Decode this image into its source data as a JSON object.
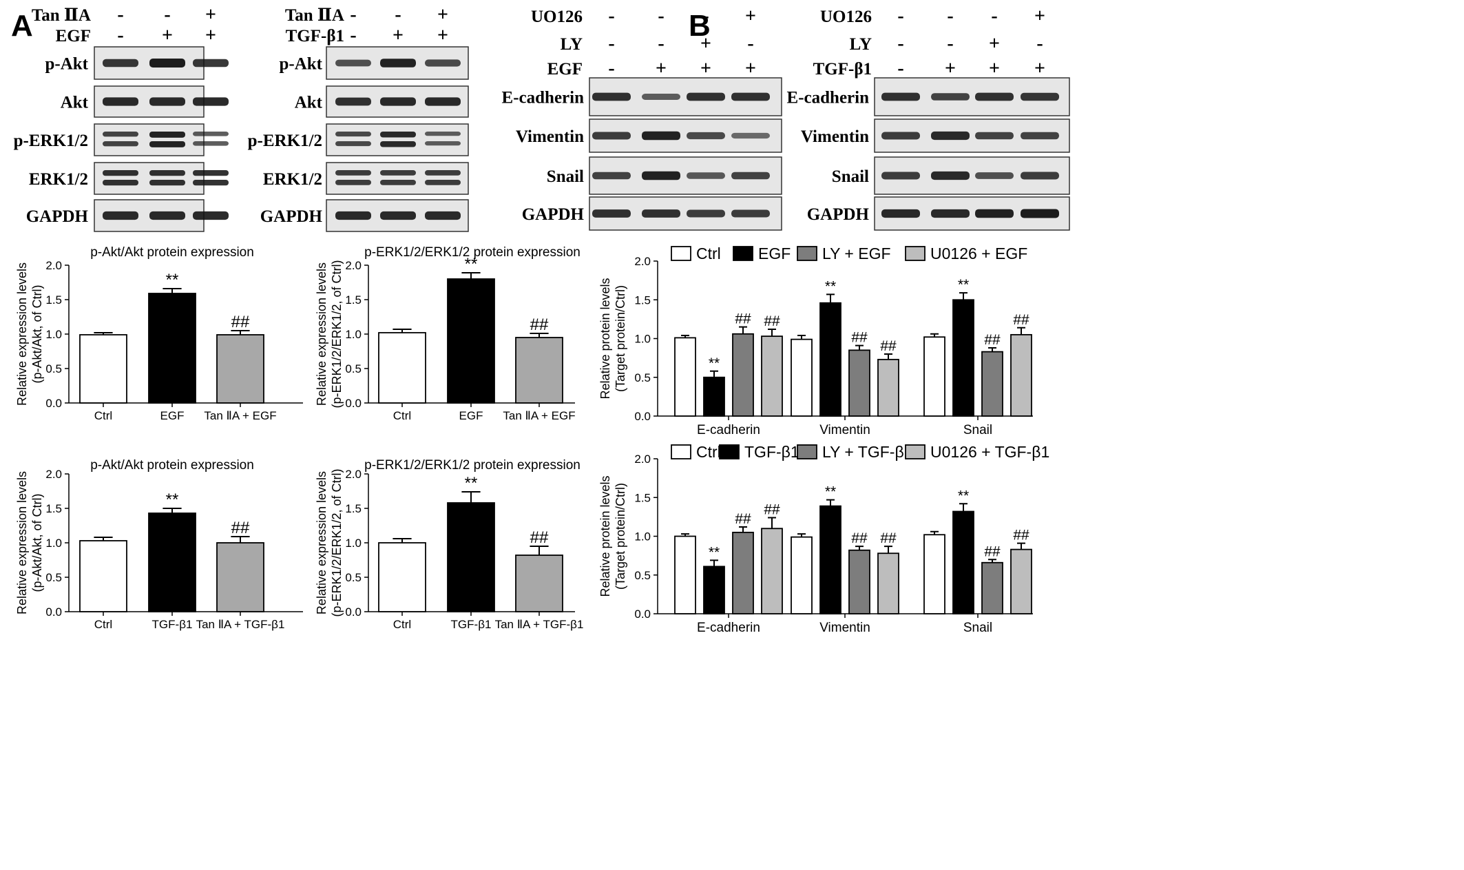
{
  "panels": {
    "A": "A",
    "B": "B"
  },
  "blots": [
    {
      "id": "blot-a1",
      "treatments": [
        {
          "label": "Tan ⅡA",
          "signs": [
            "-",
            "-",
            "+"
          ]
        },
        {
          "label": "EGF",
          "signs": [
            "-",
            "+",
            "+"
          ]
        }
      ],
      "rows": [
        {
          "label": "p-Akt",
          "intensity": [
            0.8,
            1.0,
            0.8
          ]
        },
        {
          "label": "Akt",
          "intensity": [
            0.9,
            0.9,
            0.9
          ]
        },
        {
          "label": "p-ERK1/2",
          "intensity": [
            0.7,
            0.95,
            0.55
          ]
        },
        {
          "label": "ERK1/2",
          "intensity": [
            0.85,
            0.85,
            0.85
          ]
        },
        {
          "label": "GAPDH",
          "intensity": [
            0.9,
            0.9,
            0.9
          ]
        }
      ]
    },
    {
      "id": "blot-a2",
      "treatments": [
        {
          "label": "Tan ⅡA",
          "signs": [
            "-",
            "-",
            "+"
          ]
        },
        {
          "label": "TGF-β1",
          "signs": [
            "-",
            "+",
            "+"
          ]
        }
      ],
      "rows": [
        {
          "label": "p-Akt",
          "intensity": [
            0.6,
            0.95,
            0.65
          ]
        },
        {
          "label": "Akt",
          "intensity": [
            0.85,
            0.9,
            0.9
          ]
        },
        {
          "label": "p-ERK1/2",
          "intensity": [
            0.65,
            0.9,
            0.5
          ]
        },
        {
          "label": "ERK1/2",
          "intensity": [
            0.75,
            0.75,
            0.75
          ]
        },
        {
          "label": "GAPDH",
          "intensity": [
            0.9,
            0.9,
            0.9
          ]
        }
      ]
    },
    {
      "id": "blot-b1",
      "treatments": [
        {
          "label": "UO126",
          "signs": [
            "-",
            "-",
            "-",
            "+"
          ]
        },
        {
          "label": "LY",
          "signs": [
            "-",
            "-",
            "+",
            "-"
          ]
        },
        {
          "label": "EGF",
          "signs": [
            "-",
            "+",
            "+",
            "+"
          ]
        }
      ],
      "rows": [
        {
          "label": "E-cadherin",
          "intensity": [
            0.85,
            0.5,
            0.85,
            0.85
          ]
        },
        {
          "label": "Vimentin",
          "intensity": [
            0.75,
            0.95,
            0.65,
            0.4
          ]
        },
        {
          "label": "Snail",
          "intensity": [
            0.7,
            0.95,
            0.55,
            0.7
          ]
        },
        {
          "label": "GAPDH",
          "intensity": [
            0.85,
            0.85,
            0.75,
            0.75
          ]
        }
      ]
    },
    {
      "id": "blot-b2",
      "treatments": [
        {
          "label": "UO126",
          "signs": [
            "-",
            "-",
            "-",
            "+"
          ]
        },
        {
          "label": "LY",
          "signs": [
            "-",
            "-",
            "+",
            "-"
          ]
        },
        {
          "label": "TGF-β1",
          "signs": [
            "-",
            "+",
            "+",
            "+"
          ]
        }
      ],
      "rows": [
        {
          "label": "E-cadherin",
          "intensity": [
            0.85,
            0.7,
            0.85,
            0.8
          ]
        },
        {
          "label": "Vimentin",
          "intensity": [
            0.75,
            0.9,
            0.7,
            0.7
          ]
        },
        {
          "label": "Snail",
          "intensity": [
            0.75,
            0.9,
            0.6,
            0.75
          ]
        },
        {
          "label": "GAPDH",
          "intensity": [
            0.9,
            0.9,
            0.95,
            1.0
          ]
        }
      ]
    }
  ],
  "colors": {
    "ctrl": "#ffffff",
    "treat": "#000000",
    "inhibA": "#a8a8a8",
    "ly": "#7d7d7d",
    "u0126": "#bdbdbd",
    "axis": "#000000",
    "blot_bg": "#e6e6e6",
    "band": "#111111"
  },
  "chart_data": [
    {
      "id": "chart-a1",
      "type": "bar",
      "title": "p-Akt/Akt protein expression",
      "ylabel": [
        "Relative expression levels",
        "(p-Akt/Akt, of Ctrl)"
      ],
      "ylim": [
        0,
        2.0
      ],
      "yticks": [
        "0.0",
        "0.5",
        "1.0",
        "1.5",
        "2.0"
      ],
      "categories": [
        "Ctrl",
        "EGF",
        "Tan ⅡA + EGF"
      ],
      "values": [
        0.99,
        1.59,
        0.99
      ],
      "errors": [
        0.03,
        0.07,
        0.06
      ],
      "annotations": [
        "",
        "**",
        "##"
      ],
      "fills": [
        "ctrl",
        "treat",
        "inhibA"
      ]
    },
    {
      "id": "chart-a2",
      "type": "bar",
      "title": "p-ERK1/2/ERK1/2 protein expression",
      "ylabel": [
        "Relative expression levels",
        "(p-ERK1/2/ERK1/2, of Ctrl)"
      ],
      "ylim": [
        0,
        2.0
      ],
      "yticks": [
        "0.0",
        "0.5",
        "1.0",
        "1.5",
        "2.0"
      ],
      "categories": [
        "Ctrl",
        "EGF",
        "Tan ⅡA + EGF"
      ],
      "values": [
        1.02,
        1.8,
        0.95
      ],
      "errors": [
        0.05,
        0.09,
        0.06
      ],
      "annotations": [
        "",
        "**",
        "##"
      ],
      "fills": [
        "ctrl",
        "treat",
        "inhibA"
      ]
    },
    {
      "id": "chart-a3",
      "type": "bar",
      "title": "p-Akt/Akt protein expression",
      "ylabel": [
        "Relative expression levels",
        "(p-Akt/Akt, of Ctrl)"
      ],
      "ylim": [
        0,
        2.0
      ],
      "yticks": [
        "0.0",
        "0.5",
        "1.0",
        "1.5",
        "2.0"
      ],
      "categories": [
        "Ctrl",
        "TGF-β1",
        "Tan ⅡA + TGF-β1"
      ],
      "values": [
        1.03,
        1.43,
        1.0
      ],
      "errors": [
        0.05,
        0.07,
        0.09
      ],
      "annotations": [
        "",
        "**",
        "##"
      ],
      "fills": [
        "ctrl",
        "treat",
        "inhibA"
      ]
    },
    {
      "id": "chart-a4",
      "type": "bar",
      "title": "p-ERK1/2/ERK1/2 protein expression",
      "ylabel": [
        "Relative expression levels",
        "(p-ERK1/2/ERK1/2, of Ctrl)"
      ],
      "ylim": [
        0,
        2.0
      ],
      "yticks": [
        "0.0",
        "0.5",
        "1.0",
        "1.5",
        "2.0"
      ],
      "categories": [
        "Ctrl",
        "TGF-β1",
        "Tan ⅡA + TGF-β1"
      ],
      "values": [
        1.0,
        1.58,
        0.82
      ],
      "errors": [
        0.06,
        0.16,
        0.13
      ],
      "annotations": [
        "",
        "**",
        "##"
      ],
      "fills": [
        "ctrl",
        "treat",
        "inhibA"
      ]
    },
    {
      "id": "chart-b1",
      "type": "bar",
      "title": "",
      "ylabel": [
        "Relative protein levels",
        "(Target protein/Ctrl)"
      ],
      "ylim": [
        0,
        2.0
      ],
      "yticks": [
        "0.0",
        "0.5",
        "1.0",
        "1.5",
        "2.0"
      ],
      "categories": [
        "E-cadherin",
        "Vimentin",
        "Snail"
      ],
      "legend": [
        "Ctrl",
        "EGF",
        "LY + EGF",
        "U0126 + EGF"
      ],
      "legend_position": "top",
      "series": [
        {
          "name": "Ctrl",
          "fill": "ctrl",
          "values": [
            1.01,
            0.99,
            1.02
          ],
          "errors": [
            0.03,
            0.05,
            0.04
          ],
          "annotations": [
            "",
            "",
            ""
          ]
        },
        {
          "name": "EGF",
          "fill": "treat",
          "values": [
            0.5,
            1.46,
            1.5
          ],
          "errors": [
            0.08,
            0.11,
            0.09
          ],
          "annotations": [
            "**",
            "**",
            "**"
          ]
        },
        {
          "name": "LY + EGF",
          "fill": "ly",
          "values": [
            1.06,
            0.85,
            0.83
          ],
          "errors": [
            0.09,
            0.06,
            0.05
          ],
          "annotations": [
            "##",
            "##",
            "##"
          ]
        },
        {
          "name": "U0126 + EGF",
          "fill": "u0126",
          "values": [
            1.03,
            0.73,
            1.05
          ],
          "errors": [
            0.09,
            0.07,
            0.09
          ],
          "annotations": [
            "##",
            "##",
            "##"
          ]
        }
      ]
    },
    {
      "id": "chart-b2",
      "type": "bar",
      "title": "",
      "ylabel": [
        "Relative protein levels",
        "(Target protein/Ctrl)"
      ],
      "ylim": [
        0,
        2.0
      ],
      "yticks": [
        "0.0",
        "0.5",
        "1.0",
        "1.5",
        "2.0"
      ],
      "categories": [
        "E-cadherin",
        "Vimentin",
        "Snail"
      ],
      "legend": [
        "Ctrl",
        "TGF-β1",
        "LY + TGF-β1",
        "U0126 + TGF-β1"
      ],
      "legend_position": "top",
      "series": [
        {
          "name": "Ctrl",
          "fill": "ctrl",
          "values": [
            1.0,
            0.99,
            1.02
          ],
          "errors": [
            0.03,
            0.04,
            0.04
          ],
          "annotations": [
            "",
            "",
            ""
          ]
        },
        {
          "name": "TGF-β1",
          "fill": "treat",
          "values": [
            0.61,
            1.39,
            1.32
          ],
          "errors": [
            0.08,
            0.08,
            0.1
          ],
          "annotations": [
            "**",
            "**",
            "**"
          ]
        },
        {
          "name": "LY + TGF-β1",
          "fill": "ly",
          "values": [
            1.05,
            0.82,
            0.66
          ],
          "errors": [
            0.07,
            0.05,
            0.04
          ],
          "annotations": [
            "##",
            "##",
            "##"
          ]
        },
        {
          "name": "U0126 + TGF-β1",
          "fill": "u0126",
          "values": [
            1.1,
            0.78,
            0.83
          ],
          "errors": [
            0.14,
            0.09,
            0.08
          ],
          "annotations": [
            "##",
            "##",
            "##"
          ]
        }
      ]
    }
  ]
}
